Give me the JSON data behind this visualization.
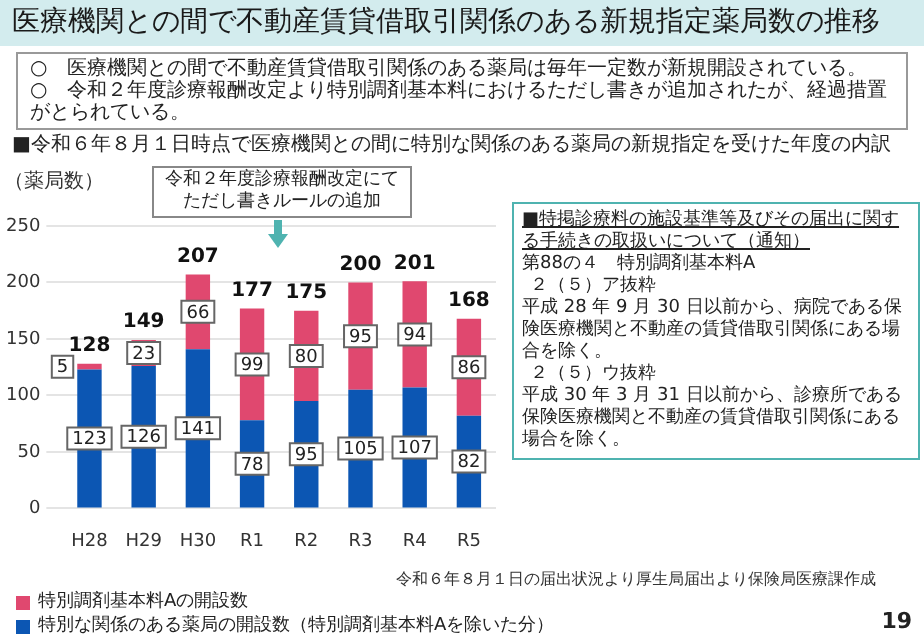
{
  "chart_data": {
    "type": "bar",
    "title": "医療機関との間で不動産賃貸借取引関係のある新規指定薬局数の推移",
    "subtitle": "■令和６年８月１日時点で医療機関との間に特別な関係のある薬局の新規指定を受けた年度の内訳",
    "ylabel": "（薬局数）",
    "categories": [
      "H28",
      "H29",
      "H30",
      "R1",
      "R2",
      "R3",
      "R4",
      "R5"
    ],
    "series": [
      {
        "name": "特別な関係のある薬局の開設数（特別調剤基本料Aを除いた分）",
        "color": "#0c56b3",
        "values": [
          123,
          126,
          141,
          78,
          95,
          105,
          107,
          82
        ]
      },
      {
        "name": "特別調剤基本料Aの開設数",
        "color": "#e0486f",
        "values": [
          5,
          23,
          66,
          99,
          80,
          95,
          94,
          86
        ]
      }
    ],
    "stacked": true,
    "ylim": [
      0,
      250
    ],
    "yticks": [
      0,
      50,
      100,
      150,
      200,
      250
    ],
    "grid": "y",
    "legend": "bottom",
    "data_labels": true,
    "totals": [
      "128",
      "149",
      "207",
      "177",
      "175",
      "200",
      "201",
      "168"
    ],
    "annotations": [
      "○　医療機関との間で不動産賃貸借取引関係のある薬局は毎年一定数が新規開設されている。",
      "○　令和２年度診療報酬改定より特別調剤基本料におけるただし書きが追加されたが、経過措置がとられている。",
      "令和２年度診療報酬改定にてただし書きルールの追加",
      "■特掲診療料の施設基準等及びその届出に関する手続きの取扱いについて（通知）",
      "第88の４　特別調剤基本料A",
      "２（５）ア抜粋",
      "平成 28 年 9 月 30 日以前から、病院である保険医療機関と不動産の賃貸借取引関係にある場合を除く。",
      "２（５）ウ抜粋",
      "平成 30 年 3 月 31 日以前から、診療所である保険医療機関と不動産の賃貸借取引関係にある場合を除く。",
      "令和６年８月１日の届出状況より厚生局届出より保険局医療課作成",
      "19"
    ]
  }
}
